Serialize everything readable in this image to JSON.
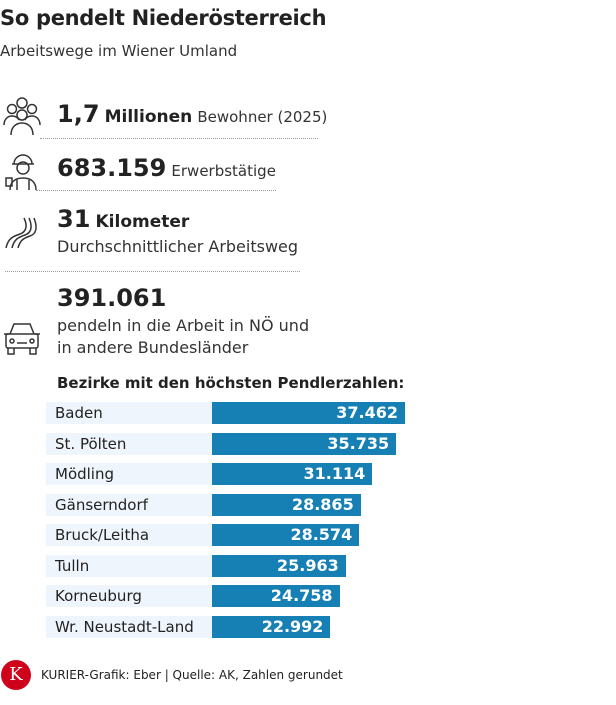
{
  "title": "So pendelt Niederösterreich",
  "subtitle": "Arbeitswege im Wiener Umland",
  "facts": [
    {
      "icon": "people-group-icon",
      "value": "1,7",
      "unit": "Millionen",
      "text": "Bewohner (2025)"
    },
    {
      "icon": "worker-icon",
      "value": "683.159",
      "text": "Erwerbstätige"
    },
    {
      "icon": "road-icon",
      "value": "31",
      "unit": "Kilometer",
      "text": "Durchschnittlicher Arbeitsweg"
    },
    {
      "icon": "car-icon",
      "value": "391.061",
      "text_line1": "pendeln in die Arbeit in NÖ und",
      "text_line2": "in andere Bundesländer"
    }
  ],
  "chart_data": {
    "type": "bar",
    "orientation": "horizontal",
    "title": "Bezirke mit den höchsten Pendlerzahlen:",
    "categories": [
      "Baden",
      "St. Pölten",
      "Mödling",
      "Gänserndorf",
      "Bruck/Leitha",
      "Tulln",
      "Korneuburg",
      "Wr. Neustadt-Land"
    ],
    "values": [
      37462,
      35735,
      31114,
      28865,
      28574,
      25963,
      24758,
      22992
    ],
    "value_labels": [
      "37.462",
      "35.735",
      "31.114",
      "28.865",
      "28.574",
      "25.963",
      "24.758",
      "22.992"
    ],
    "bar_color": "#1680b4",
    "label_bg": "#eef5fc",
    "grid": false
  },
  "footer": {
    "logo": "K",
    "logo_color": "#d0021b",
    "text": "KURIER-Grafik: Eber | Quelle: AK, Zahlen gerundet"
  }
}
